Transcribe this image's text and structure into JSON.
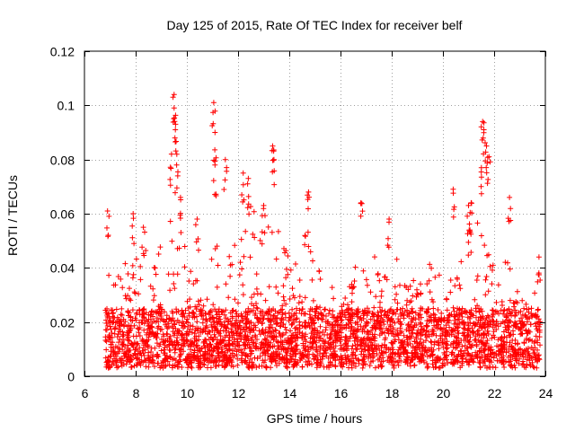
{
  "chart_data": {
    "type": "scatter",
    "title": "Day 125 of 2015, Rate Of TEC Index for receiver belf",
    "xlabel": "GPS time / hours",
    "ylabel": "ROTI / TECUs",
    "xlim": [
      6,
      24
    ],
    "ylim": [
      0,
      0.12
    ],
    "x_ticks": [
      6,
      8,
      10,
      12,
      14,
      16,
      18,
      20,
      22,
      24
    ],
    "x_tick_labels": [
      "6",
      "8",
      "10",
      "12",
      "14",
      "16",
      "18",
      "20",
      "22",
      "24"
    ],
    "y_ticks": [
      0,
      0.02,
      0.04,
      0.06,
      0.08,
      0.1,
      0.12
    ],
    "y_tick_labels": [
      "0",
      "0.02",
      "0.04",
      "0.06",
      "0.08",
      "0.1",
      "0.12"
    ],
    "grid": true,
    "marker": "+",
    "color": "#ff0000",
    "data_range_hours": [
      6.8,
      23.8
    ],
    "baseline_band": [
      0.005,
      0.025
    ],
    "peaks": [
      {
        "x": 6.9,
        "y": 0.061
      },
      {
        "x": 7.9,
        "y": 0.06
      },
      {
        "x": 8.3,
        "y": 0.055
      },
      {
        "x": 9.5,
        "y": 0.104
      },
      {
        "x": 9.5,
        "y": 0.099
      },
      {
        "x": 9.55,
        "y": 0.091
      },
      {
        "x": 9.4,
        "y": 0.082
      },
      {
        "x": 9.6,
        "y": 0.078
      },
      {
        "x": 9.75,
        "y": 0.066
      },
      {
        "x": 10.4,
        "y": 0.058
      },
      {
        "x": 11.05,
        "y": 0.101
      },
      {
        "x": 11.1,
        "y": 0.09
      },
      {
        "x": 11.1,
        "y": 0.078
      },
      {
        "x": 11.5,
        "y": 0.08
      },
      {
        "x": 12.2,
        "y": 0.075
      },
      {
        "x": 12.4,
        "y": 0.073
      },
      {
        "x": 13.0,
        "y": 0.063
      },
      {
        "x": 13.35,
        "y": 0.085
      },
      {
        "x": 13.4,
        "y": 0.08
      },
      {
        "x": 14.75,
        "y": 0.068
      },
      {
        "x": 16.8,
        "y": 0.064
      },
      {
        "x": 17.9,
        "y": 0.058
      },
      {
        "x": 20.4,
        "y": 0.069
      },
      {
        "x": 21.0,
        "y": 0.063
      },
      {
        "x": 21.1,
        "y": 0.064
      },
      {
        "x": 21.55,
        "y": 0.094
      },
      {
        "x": 21.6,
        "y": 0.091
      },
      {
        "x": 21.7,
        "y": 0.085
      },
      {
        "x": 21.8,
        "y": 0.081
      },
      {
        "x": 21.5,
        "y": 0.077
      },
      {
        "x": 22.6,
        "y": 0.066
      },
      {
        "x": 23.75,
        "y": 0.044
      }
    ],
    "envelope": {
      "x": [
        6.8,
        7.2,
        7.6,
        8.0,
        8.4,
        8.8,
        9.2,
        9.5,
        9.8,
        10.2,
        10.6,
        11.0,
        11.4,
        11.8,
        12.2,
        12.6,
        13.0,
        13.4,
        13.8,
        14.2,
        14.6,
        15.0,
        15.4,
        15.8,
        16.2,
        16.6,
        17.0,
        17.4,
        17.8,
        18.2,
        18.6,
        19.0,
        19.4,
        19.8,
        20.2,
        20.6,
        21.0,
        21.4,
        21.8,
        22.2,
        22.6,
        23.0,
        23.4,
        23.8
      ],
      "y": [
        0.045,
        0.035,
        0.042,
        0.05,
        0.047,
        0.042,
        0.06,
        0.062,
        0.055,
        0.04,
        0.048,
        0.052,
        0.046,
        0.048,
        0.058,
        0.065,
        0.055,
        0.06,
        0.048,
        0.04,
        0.058,
        0.045,
        0.035,
        0.035,
        0.033,
        0.043,
        0.04,
        0.045,
        0.042,
        0.044,
        0.036,
        0.04,
        0.044,
        0.038,
        0.034,
        0.04,
        0.055,
        0.058,
        0.046,
        0.04,
        0.046,
        0.03,
        0.025,
        0.04
      ]
    },
    "point_count": 3200,
    "seed": 125
  }
}
